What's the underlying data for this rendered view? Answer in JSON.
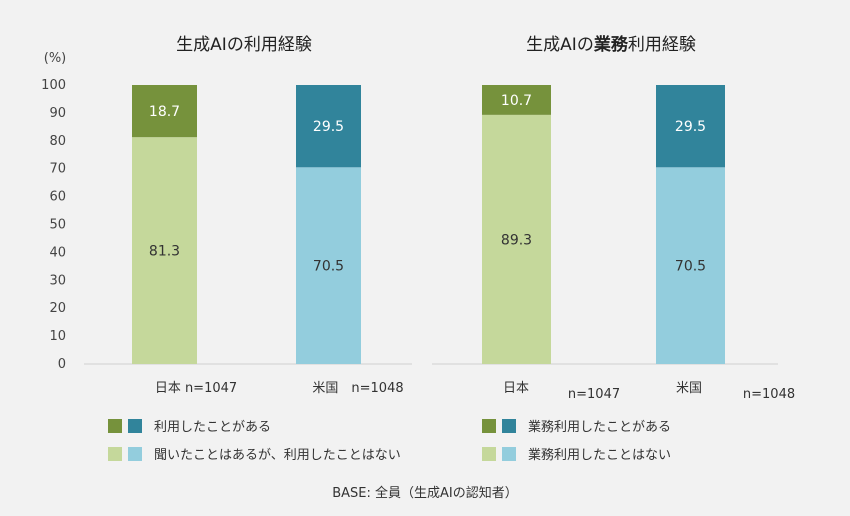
{
  "chart_data": [
    {
      "type": "bar",
      "stacked": true,
      "title": "生成AIの利用経験",
      "y_unit_label": "(%)",
      "ylim": [
        0,
        100
      ],
      "y_ticks": [
        "0",
        "10",
        "20",
        "30",
        "40",
        "50",
        "60",
        "70",
        "80",
        "90",
        "100"
      ],
      "categories": [
        "日本 n=1047",
        "米国　n=1048"
      ],
      "series": [
        {
          "name": "聞いたことはあるが、利用したことはない",
          "values": [
            81.3,
            70.5
          ],
          "colors": [
            "#c5d89b",
            "#93cddd"
          ]
        },
        {
          "name": "利用したことがある",
          "values": [
            18.7,
            29.5
          ],
          "colors": [
            "#76923c",
            "#31849b"
          ]
        }
      ],
      "data_labels": [
        [
          "81.3",
          "70.5"
        ],
        [
          "18.7",
          "29.5"
        ]
      ],
      "grid": false
    },
    {
      "type": "bar",
      "stacked": true,
      "title_parts": [
        "生成AIの",
        "業務",
        "利用経験"
      ],
      "ylim": [
        0,
        100
      ],
      "categories": [
        "日本",
        "米国"
      ],
      "category_n": [
        "n=1047",
        "n=1048"
      ],
      "series": [
        {
          "name": "業務利用したことはない",
          "values": [
            89.3,
            70.5
          ],
          "colors": [
            "#c5d89b",
            "#93cddd"
          ]
        },
        {
          "name": "業務利用したことがある",
          "values": [
            10.7,
            29.5
          ],
          "colors": [
            "#76923c",
            "#31849b"
          ]
        }
      ],
      "data_labels": [
        [
          "89.3",
          "70.5"
        ],
        [
          "10.7",
          "29.5"
        ]
      ],
      "grid": false
    }
  ],
  "legend": {
    "left": [
      "利用したことがある",
      "聞いたことはあるが、利用したことはない"
    ],
    "right": [
      "業務利用したことがある",
      "業務利用したことはない"
    ],
    "swatch_colors": {
      "used": [
        "#76923c",
        "#31849b"
      ],
      "not_used": [
        "#c5d89b",
        "#93cddd"
      ]
    }
  },
  "footer": "BASE: 全員（生成AIの認知者）",
  "colors": {
    "dark_green": "#76923c",
    "dark_teal": "#31849b",
    "light_green": "#c5d89b",
    "light_blue": "#93cddd",
    "background": "#f2f2f2"
  }
}
